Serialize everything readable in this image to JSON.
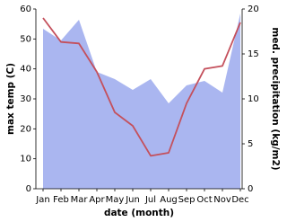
{
  "chart_data": {
    "type": "line",
    "xlabel": "date (month)",
    "ylabel": "max temp (C)",
    "y2label": "med. precipitation (kg/m2)",
    "categories": [
      "Jan",
      "Feb",
      "Mar",
      "Apr",
      "May",
      "Jun",
      "Jul",
      "Aug",
      "Sep",
      "Oct",
      "Nov",
      "Dec"
    ],
    "series": [
      {
        "type": "area",
        "axis": "y2",
        "color": "#aab6f0",
        "values": [
          17.8,
          16.5,
          18.8,
          13,
          12.2,
          11,
          12.2,
          9.5,
          11.5,
          12,
          10.7,
          19.5
        ]
      },
      {
        "type": "line",
        "color": "#c4505c",
        "values": [
          57,
          49,
          48.5,
          39,
          25.5,
          21,
          11,
          12,
          28.5,
          40,
          41,
          55.5
        ]
      }
    ],
    "ylim": [
      0,
      60
    ],
    "yticks": [
      0,
      10,
      20,
      30,
      40,
      50,
      60
    ],
    "y2lim": [
      0,
      20
    ],
    "y2ticks": [
      0,
      5,
      10,
      15,
      20
    ]
  }
}
